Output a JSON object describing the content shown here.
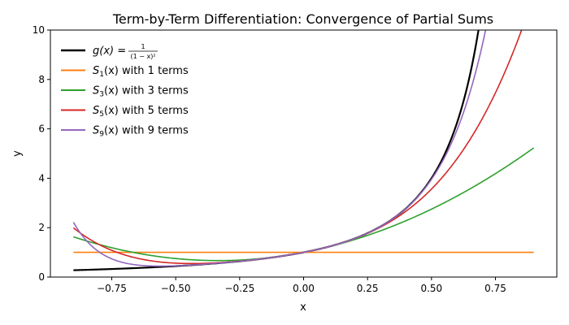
{
  "chart_data": {
    "type": "line",
    "title": "Term-by-Term Differentiation: Convergence of Partial Sums",
    "xlabel": "x",
    "ylabel": "y",
    "xlim": [
      -0.99,
      0.99
    ],
    "ylim": [
      0,
      10
    ],
    "x_ticks": [
      -0.75,
      -0.5,
      -0.25,
      0.0,
      0.25,
      0.5,
      0.75
    ],
    "x_tick_labels": [
      "−0.75",
      "−0.50",
      "−0.25",
      "0.00",
      "0.25",
      "0.50",
      "0.75"
    ],
    "y_ticks": [
      0,
      2,
      4,
      6,
      8,
      10
    ],
    "y_tick_labels": [
      "0",
      "2",
      "4",
      "6",
      "8",
      "10"
    ],
    "x_range": [
      -0.9,
      0.9
    ],
    "grid": false,
    "legend": {
      "placement": "top-left",
      "frame": false
    },
    "series": [
      {
        "name": "g(x) = 1/(1 − x)²",
        "legend_fn": "g(x)",
        "legend_frac_num": "1",
        "legend_frac_den": "(1 − x)²",
        "kind": "exact",
        "color": "#000000",
        "stroke_width": 2.2
      },
      {
        "name": "S1(x) with 1 terms",
        "legend_sym": "S",
        "legend_sub": "1",
        "legend_after": "(x) with 1 terms",
        "terms": 1,
        "color": "#ff7f0e",
        "stroke_width": 1.6
      },
      {
        "name": "S3(x) with 3 terms",
        "legend_sym": "S",
        "legend_sub": "3",
        "legend_after": "(x) with 3 terms",
        "terms": 3,
        "color": "#2ca02c",
        "stroke_width": 1.6
      },
      {
        "name": "S5(x) with 5 terms",
        "legend_sym": "S",
        "legend_sub": "5",
        "legend_after": "(x) with 5 terms",
        "terms": 5,
        "color": "#d62728",
        "stroke_width": 1.6
      },
      {
        "name": "S9(x) with 9 terms",
        "legend_sym": "S",
        "legend_sub": "9",
        "legend_after": "(x) with 9 terms",
        "terms": 9,
        "color": "#9467bd",
        "stroke_width": 1.6
      }
    ]
  }
}
